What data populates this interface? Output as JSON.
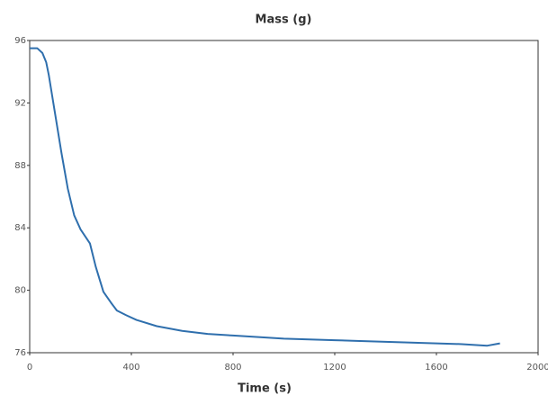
{
  "chart_data": {
    "type": "line",
    "title": "Mass (g)",
    "x_label": "Time (s)",
    "x": [
      0,
      30,
      50,
      65,
      75,
      85,
      100,
      125,
      150,
      175,
      200,
      237,
      260,
      290,
      320,
      343,
      380,
      420,
      500,
      600,
      700,
      800,
      900,
      1000,
      1100,
      1200,
      1300,
      1400,
      1500,
      1600,
      1700,
      1750,
      1800,
      1850
    ],
    "series": [
      {
        "name": "Mass (g)",
        "color": "#2f6fad",
        "values": [
          95.5,
          95.5,
          95.2,
          94.6,
          93.8,
          92.8,
          91.3,
          88.8,
          86.5,
          84.8,
          83.9,
          83.0,
          81.5,
          79.9,
          79.2,
          78.7,
          78.4,
          78.1,
          77.7,
          77.4,
          77.2,
          77.1,
          77.0,
          76.9,
          76.85,
          76.8,
          76.75,
          76.7,
          76.65,
          76.6,
          76.55,
          76.5,
          76.45,
          76.6
        ]
      }
    ],
    "xlim": [
      0,
      2000
    ],
    "xticks": [
      0,
      400,
      800,
      1200,
      1600,
      2000
    ],
    "ylim": [
      76,
      96
    ],
    "yticks": [
      76,
      80,
      84,
      88,
      92,
      96
    ]
  }
}
